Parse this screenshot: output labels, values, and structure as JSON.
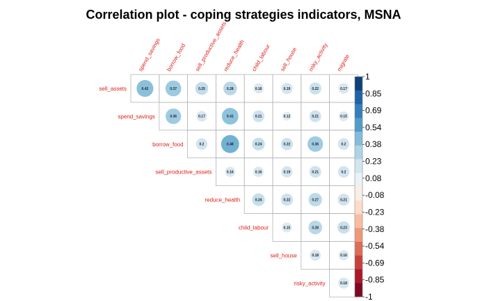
{
  "chart_data": {
    "type": "heatmap",
    "subtype": "correlation-upper-triangle",
    "title": "Correlation plot - coping strategies indicators, MSNA",
    "row_labels": [
      "sell_assets",
      "spend_savings",
      "borrow_food",
      "sell_productive_assets",
      "reduce_health",
      "child_labour",
      "sell_house",
      "risky_activity"
    ],
    "col_labels": [
      "spend_savings",
      "borrow_food",
      "sell_productive_assets",
      "reduce_health",
      "child_labour",
      "sell_house",
      "risky_activity",
      "migrate"
    ],
    "cells": [
      {
        "row": 0,
        "col": 0,
        "value": 0.42,
        "label": "0.42"
      },
      {
        "row": 0,
        "col": 1,
        "value": 0.37,
        "label": "0.37"
      },
      {
        "row": 0,
        "col": 2,
        "value": 0.25,
        "label": "0.25"
      },
      {
        "row": 0,
        "col": 3,
        "value": 0.28,
        "label": "0.28"
      },
      {
        "row": 0,
        "col": 4,
        "value": 0.16,
        "label": "0.16"
      },
      {
        "row": 0,
        "col": 5,
        "value": 0.19,
        "label": "0.19"
      },
      {
        "row": 0,
        "col": 6,
        "value": 0.22,
        "label": "0.22"
      },
      {
        "row": 0,
        "col": 7,
        "value": 0.17,
        "label": "0.17"
      },
      {
        "row": 1,
        "col": 1,
        "value": 0.36,
        "label": "0.36"
      },
      {
        "row": 1,
        "col": 2,
        "value": 0.17,
        "label": "0.17"
      },
      {
        "row": 1,
        "col": 3,
        "value": 0.41,
        "label": "0.41"
      },
      {
        "row": 1,
        "col": 4,
        "value": 0.21,
        "label": "0.21"
      },
      {
        "row": 1,
        "col": 5,
        "value": 0.12,
        "label": "0.12"
      },
      {
        "row": 1,
        "col": 6,
        "value": 0.21,
        "label": "0.21"
      },
      {
        "row": 1,
        "col": 7,
        "value": 0.15,
        "label": "0.15"
      },
      {
        "row": 2,
        "col": 2,
        "value": 0.2,
        "label": "0.2"
      },
      {
        "row": 2,
        "col": 3,
        "value": 0.48,
        "label": "0.48"
      },
      {
        "row": 2,
        "col": 4,
        "value": 0.24,
        "label": "0.24"
      },
      {
        "row": 2,
        "col": 5,
        "value": 0.22,
        "label": "0.22"
      },
      {
        "row": 2,
        "col": 6,
        "value": 0.36,
        "label": "0.36"
      },
      {
        "row": 2,
        "col": 7,
        "value": 0.2,
        "label": "0.2"
      },
      {
        "row": 3,
        "col": 3,
        "value": 0.16,
        "label": "0.16"
      },
      {
        "row": 3,
        "col": 4,
        "value": 0.16,
        "label": "0.16"
      },
      {
        "row": 3,
        "col": 5,
        "value": 0.19,
        "label": "0.19"
      },
      {
        "row": 3,
        "col": 6,
        "value": 0.21,
        "label": "0.21"
      },
      {
        "row": 3,
        "col": 7,
        "value": 0.2,
        "label": "0.2"
      },
      {
        "row": 4,
        "col": 4,
        "value": 0.24,
        "label": "0.24"
      },
      {
        "row": 4,
        "col": 5,
        "value": 0.22,
        "label": "0.22"
      },
      {
        "row": 4,
        "col": 6,
        "value": 0.27,
        "label": "0.27"
      },
      {
        "row": 4,
        "col": 7,
        "value": 0.21,
        "label": "0.21"
      },
      {
        "row": 5,
        "col": 5,
        "value": 0.15,
        "label": "0.15"
      },
      {
        "row": 5,
        "col": 6,
        "value": 0.28,
        "label": "0.28"
      },
      {
        "row": 5,
        "col": 7,
        "value": 0.23,
        "label": "0.23"
      },
      {
        "row": 6,
        "col": 6,
        "value": 0.18,
        "label": "0.18"
      },
      {
        "row": 6,
        "col": 7,
        "value": 0.16,
        "label": "0.16"
      },
      {
        "row": 7,
        "col": 7,
        "value": 0.18,
        "label": "0.18"
      }
    ],
    "legend": {
      "range": [
        -1,
        1
      ],
      "ticks": [
        "1",
        "0.85",
        "0.69",
        "0.54",
        "0.38",
        "0.23",
        "0.08",
        "-0.08",
        "-0.23",
        "-0.38",
        "-0.54",
        "-0.69",
        "-0.85",
        "-1"
      ],
      "colors": [
        "#67001f",
        "#b2182b",
        "#d6604d",
        "#f4a582",
        "#fddbc7",
        "#f7f7f7",
        "#d1e5f0",
        "#92c5de",
        "#4393c3",
        "#2166ac",
        "#053061"
      ]
    }
  }
}
